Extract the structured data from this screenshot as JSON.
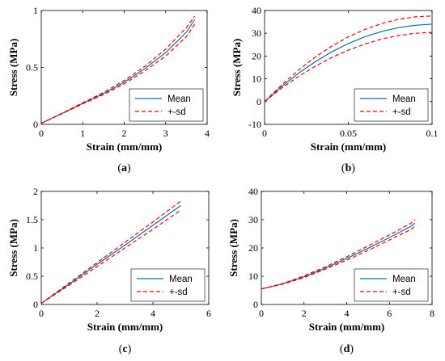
{
  "chart_data": [
    {
      "type": "line",
      "panel": "a",
      "caption": "(a)",
      "xlabel": "Strain (mm/mm)",
      "ylabel": "Stress (MPa)",
      "xlim": [
        0,
        4
      ],
      "ylim": [
        0,
        1
      ],
      "xticks": [
        0,
        1,
        2,
        3,
        4
      ],
      "yticks": [
        0,
        0.5,
        1
      ],
      "xtick_labels": [
        "0",
        "1",
        "2",
        "3",
        "4"
      ],
      "ytick_labels": [
        "0",
        "0.5",
        "1"
      ],
      "legend": {
        "entries": [
          "Mean",
          "+-sd"
        ],
        "position": "bottom-right"
      },
      "series": [
        {
          "name": "Mean",
          "style": "solid",
          "color": "#0072BD",
          "x": [
            0,
            0.5,
            1,
            1.5,
            2,
            2.5,
            3,
            3.5,
            3.7
          ],
          "y": [
            0.01,
            0.095,
            0.185,
            0.27,
            0.37,
            0.49,
            0.63,
            0.81,
            0.92
          ]
        },
        {
          "name": "+sd",
          "style": "dashed",
          "color": "#FF0000",
          "x": [
            0,
            0.5,
            1,
            1.5,
            2,
            2.5,
            3,
            3.5,
            3.7
          ],
          "y": [
            0.01,
            0.097,
            0.19,
            0.28,
            0.385,
            0.51,
            0.66,
            0.85,
            0.95
          ]
        },
        {
          "name": "-sd",
          "style": "dashed",
          "color": "#FF0000",
          "x": [
            0,
            0.5,
            1,
            1.5,
            2,
            2.5,
            3,
            3.5,
            3.7
          ],
          "y": [
            0.01,
            0.093,
            0.18,
            0.262,
            0.355,
            0.47,
            0.6,
            0.77,
            0.88
          ]
        }
      ]
    },
    {
      "type": "line",
      "panel": "b",
      "caption": "(b)",
      "xlabel": "Strain (mm/mm)",
      "ylabel": "Stress (MPa)",
      "xlim": [
        0,
        0.1
      ],
      "ylim": [
        -10,
        40
      ],
      "xticks": [
        0,
        0.05,
        0.1
      ],
      "yticks": [
        -10,
        0,
        10,
        20,
        30,
        40
      ],
      "xtick_labels": [
        "0",
        "0.05",
        "0.1"
      ],
      "ytick_labels": [
        "-10",
        "0",
        "10",
        "20",
        "30",
        "40"
      ],
      "legend": {
        "entries": [
          "Mean",
          "+-sd"
        ],
        "position": "bottom-right"
      },
      "series": [
        {
          "name": "Mean",
          "style": "solid",
          "color": "#0072BD",
          "x": [
            0,
            0.01,
            0.02,
            0.03,
            0.04,
            0.05,
            0.06,
            0.07,
            0.08,
            0.09,
            0.1
          ],
          "y": [
            0,
            6.5,
            12.3,
            17.4,
            21.8,
            25.5,
            28.5,
            30.8,
            32.5,
            33.5,
            34
          ]
        },
        {
          "name": "+sd",
          "style": "dashed",
          "color": "#FF0000",
          "x": [
            0,
            0.01,
            0.02,
            0.03,
            0.04,
            0.05,
            0.06,
            0.07,
            0.08,
            0.09,
            0.1
          ],
          "y": [
            0,
            7.2,
            13.7,
            19.4,
            24.3,
            28.4,
            31.7,
            34.3,
            36.1,
            37.2,
            37.6
          ]
        },
        {
          "name": "-sd",
          "style": "dashed",
          "color": "#FF0000",
          "x": [
            0,
            0.01,
            0.02,
            0.03,
            0.04,
            0.05,
            0.06,
            0.07,
            0.08,
            0.09,
            0.1
          ],
          "y": [
            0,
            5.8,
            10.9,
            15.4,
            19.3,
            22.6,
            25.3,
            27.5,
            29,
            30,
            30.4
          ]
        }
      ]
    },
    {
      "type": "line",
      "panel": "c",
      "caption": "(c)",
      "xlabel": "Strain (mm/mm)",
      "ylabel": "Stress (MPa)",
      "xlim": [
        0,
        6
      ],
      "ylim": [
        0,
        2
      ],
      "xticks": [
        0,
        2,
        4,
        6
      ],
      "yticks": [
        0,
        0.5,
        1,
        1.5,
        2
      ],
      "xtick_labels": [
        "0",
        "2",
        "4",
        "6"
      ],
      "ytick_labels": [
        "0",
        "0.5",
        "1",
        "1.5",
        "2"
      ],
      "legend": {
        "entries": [
          "Mean",
          "+-sd"
        ],
        "position": "bottom-right"
      },
      "series": [
        {
          "name": "Mean",
          "style": "solid",
          "color": "#0072BD",
          "x": [
            0,
            1,
            2,
            3,
            4,
            5
          ],
          "y": [
            0.02,
            0.36,
            0.71,
            1.05,
            1.4,
            1.75
          ]
        },
        {
          "name": "+sd",
          "style": "dashed",
          "color": "#FF0000",
          "x": [
            0,
            1,
            2,
            3,
            4,
            5
          ],
          "y": [
            0.02,
            0.38,
            0.74,
            1.1,
            1.46,
            1.83
          ]
        },
        {
          "name": "-sd",
          "style": "dashed",
          "color": "#FF0000",
          "x": [
            0,
            1,
            2,
            3,
            4,
            5
          ],
          "y": [
            0.02,
            0.34,
            0.67,
            1.0,
            1.33,
            1.67
          ]
        }
      ]
    },
    {
      "type": "line",
      "panel": "d",
      "caption": "(d)",
      "xlabel": "Strain (mm/mm)",
      "ylabel": "Stress (MPa)",
      "xlim": [
        0,
        8
      ],
      "ylim": [
        0,
        40
      ],
      "xticks": [
        0,
        2,
        4,
        6,
        8
      ],
      "yticks": [
        0,
        10,
        20,
        30,
        40
      ],
      "xtick_labels": [
        "0",
        "2",
        "4",
        "6",
        "8"
      ],
      "ytick_labels": [
        "0",
        "10",
        "20",
        "30",
        "40"
      ],
      "legend": {
        "entries": [
          "Mean",
          "+-sd"
        ],
        "position": "bottom-right"
      },
      "series": [
        {
          "name": "Mean",
          "style": "solid",
          "color": "#0072BD",
          "x": [
            0,
            1,
            2,
            3,
            4,
            5,
            6,
            7,
            7.2
          ],
          "y": [
            5.5,
            7.3,
            9.8,
            12.9,
            16.3,
            19.9,
            23.7,
            27.6,
            28.9
          ]
        },
        {
          "name": "+sd",
          "style": "dashed",
          "color": "#FF0000",
          "x": [
            0,
            1,
            2,
            3,
            4,
            5,
            6,
            7,
            7.2
          ],
          "y": [
            5.5,
            7.4,
            10.1,
            13.3,
            16.9,
            20.7,
            24.6,
            28.7,
            30.1
          ]
        },
        {
          "name": "-sd",
          "style": "dashed",
          "color": "#FF0000",
          "x": [
            0,
            1,
            2,
            3,
            4,
            5,
            6,
            7,
            7.2
          ],
          "y": [
            5.5,
            7.2,
            9.5,
            12.5,
            15.7,
            19.1,
            22.8,
            26.5,
            27.7
          ]
        }
      ]
    }
  ]
}
